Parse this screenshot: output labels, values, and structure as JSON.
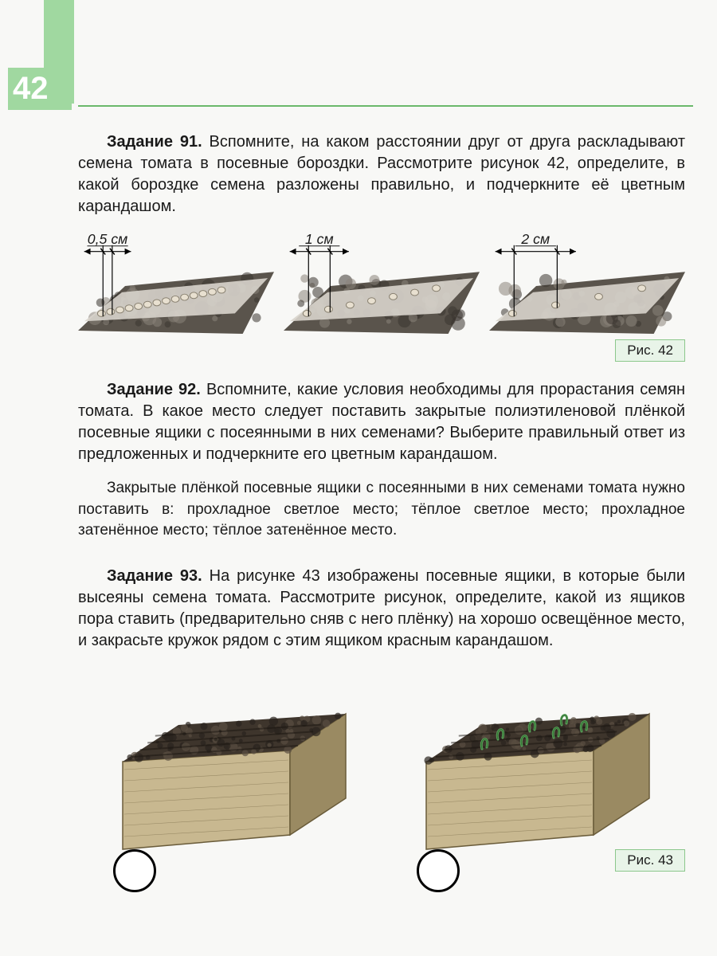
{
  "page": {
    "number": "42",
    "header_bg": "#a0d8a0",
    "number_color": "#ffffff",
    "divider_color": "#6bb96b",
    "bg_color": "#f8f8f6"
  },
  "task91": {
    "title": "Задание 91.",
    "text": "Вспомните, на каком расстоянии друг от друга раскладывают семена томата в посевные бороздки. Рассмотрите рисунок 42, определите, в какой бороздке семена разложены правильно, и подчеркните её цветным карандашом.",
    "fig_label": "Рис. 42",
    "diagrams": [
      {
        "label": "0,5 см",
        "spacing": 12,
        "seed_count": 14
      },
      {
        "label": "1 см",
        "spacing": 28,
        "seed_count": 7
      },
      {
        "label": "2 см",
        "spacing": 56,
        "seed_count": 4
      }
    ],
    "colors": {
      "soil_dark": "#3a3530",
      "soil_mid": "#5a544c",
      "soil_light": "#8a837a",
      "furrow": "#d8d4cc",
      "seed_fill": "#e8e0d0",
      "seed_stroke": "#888070",
      "measure_line": "#000000",
      "label_text": "#1a1a1a"
    }
  },
  "task92": {
    "title": "Задание 92.",
    "text": "Вспомните, какие условия необходимы для прорастания семян томата. В какое место следует поставить закрытые полиэтиленовой плёнкой посевные ящики с посеянными в них семенами? Выберите правильный ответ из предложенных и подчеркните его цветным карандашом.",
    "options_text": "Закрытые плёнкой посевные ящики с посеянными в них семенами томата нужно поставить в: прохладное светлое место; тёплое светлое место; прохладное затенённое место; тёплое затенённое место."
  },
  "task93": {
    "title": "Задание 93.",
    "text": "На рисунке 43 изображены посевные ящики, в которые были высеяны семена томата. Рассмотрите рисунок, определите, какой из ящиков пора ставить (предварительно сняв с него плёнку) на хорошо освещённое место, и закрасьте кружок рядом с этим ящиком красным карандашом.",
    "fig_label": "Рис. 43",
    "boxes": [
      {
        "has_sprouts": false
      },
      {
        "has_sprouts": true
      }
    ],
    "colors": {
      "box_wood": "#c8b890",
      "box_wood_dark": "#9a8a62",
      "box_edge": "#6a5c3a",
      "soil_top": "#3e352c",
      "soil_clump1": "#5a4e42",
      "soil_clump2": "#2a241e",
      "sprout": "#5aa05a",
      "sprout_stroke": "#2e6e2e",
      "circle_stroke": "#000000"
    }
  },
  "fig_label_style": {
    "bg": "#e8f4e8",
    "border": "#8cc88c",
    "text": "#1a1a1a"
  }
}
